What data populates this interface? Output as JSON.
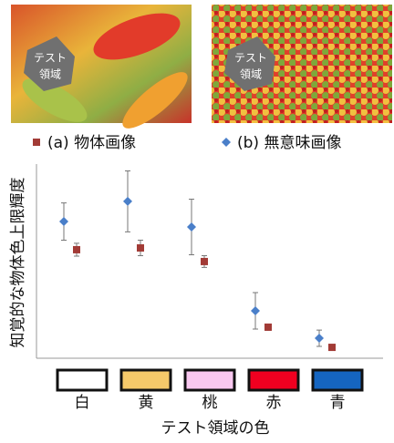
{
  "images": [
    {
      "label_lines": [
        "テスト",
        "領域"
      ]
    },
    {
      "label_lines": [
        "テスト",
        "領域"
      ]
    }
  ],
  "chart_data": {
    "type": "errorbar_scatter",
    "y_label": "知覚的な物体色上限輝度",
    "x_label": "テスト領域の色",
    "categories": [
      "白",
      "黄",
      "桃",
      "赤",
      "青"
    ],
    "category_colors": [
      "#ffffff",
      "#f5c96a",
      "#f9c8f0",
      "#f00020",
      "#1565c0"
    ],
    "ylim": [
      0,
      100
    ],
    "series": [
      {
        "name": "(a) 物体画像",
        "color": "#a23b36",
        "marker": "square",
        "values": [
          55.9,
          56.8,
          49.8,
          16,
          5.6
        ],
        "errors": [
          3.3,
          4,
          3,
          1.6,
          0.5
        ]
      },
      {
        "name": "(b) 無意味画像",
        "color": "#4a7fc9",
        "marker": "diamond",
        "values": [
          70.4,
          80.8,
          67.6,
          24.4,
          10.3
        ],
        "errors": [
          9.6,
          15.7,
          14.3,
          9.4,
          4.2
        ]
      }
    ]
  }
}
